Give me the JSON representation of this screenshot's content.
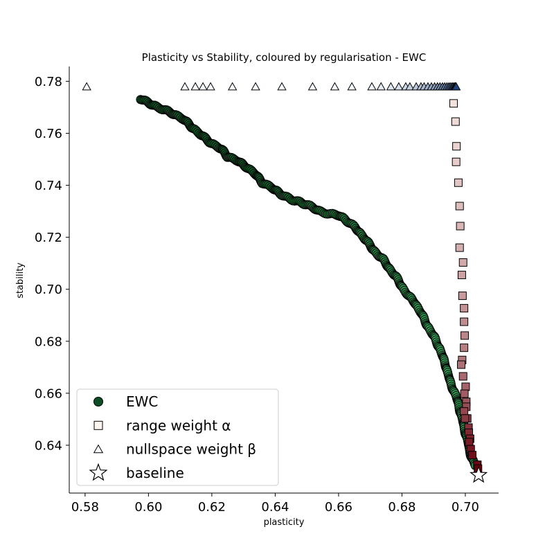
{
  "chart_data": {
    "type": "scatter",
    "title": "Plasticity vs Stability, coloured by regularisation - EWC",
    "xlabel": "plasticity",
    "ylabel": "stability",
    "xlim": [
      0.575,
      0.7105
    ],
    "ylim": [
      0.6216,
      0.7857
    ],
    "xticks": [
      0.58,
      0.6,
      0.62,
      0.64,
      0.66,
      0.68,
      0.7
    ],
    "xtick_labels": [
      "0.58",
      "0.60",
      "0.62",
      "0.64",
      "0.66",
      "0.68",
      "0.70"
    ],
    "yticks": [
      0.64,
      0.66,
      0.68,
      0.7,
      0.72,
      0.74,
      0.76,
      0.78
    ],
    "ytick_labels": [
      "0.64",
      "0.66",
      "0.68",
      "0.70",
      "0.72",
      "0.74",
      "0.76",
      "0.78"
    ],
    "legend_position": "lower-left",
    "legend": [
      {
        "label": "EWC",
        "marker": "circle"
      },
      {
        "label": "range weight α",
        "marker": "square"
      },
      {
        "label": "nullspace weight β",
        "marker": "triangle"
      },
      {
        "label": "baseline",
        "marker": "star"
      }
    ],
    "series": [
      {
        "name": "EWC",
        "marker": "circle",
        "colormap": "greens",
        "color_light": "#3aa85c",
        "color_dark": "#0b4d24",
        "trace": [
          [
            0.5975,
            0.7733
          ],
          [
            0.6,
            0.7717
          ],
          [
            0.603,
            0.77
          ],
          [
            0.607,
            0.768
          ],
          [
            0.611,
            0.7655
          ],
          [
            0.614,
            0.762
          ],
          [
            0.617,
            0.759
          ],
          [
            0.62,
            0.756
          ],
          [
            0.623,
            0.754
          ],
          [
            0.625,
            0.751
          ],
          [
            0.628,
            0.7495
          ],
          [
            0.631,
            0.747
          ],
          [
            0.634,
            0.744
          ],
          [
            0.636,
            0.741
          ],
          [
            0.639,
            0.739
          ],
          [
            0.642,
            0.7365
          ],
          [
            0.645,
            0.7345
          ],
          [
            0.648,
            0.7335
          ],
          [
            0.651,
            0.732
          ],
          [
            0.654,
            0.73
          ],
          [
            0.657,
            0.729
          ],
          [
            0.66,
            0.7285
          ],
          [
            0.662,
            0.727
          ],
          [
            0.665,
            0.724
          ],
          [
            0.668,
            0.72
          ],
          [
            0.671,
            0.715
          ],
          [
            0.674,
            0.7115
          ],
          [
            0.676,
            0.708
          ],
          [
            0.678,
            0.705
          ],
          [
            0.68,
            0.701
          ],
          [
            0.682,
            0.6975
          ],
          [
            0.684,
            0.695
          ],
          [
            0.686,
            0.691
          ],
          [
            0.688,
            0.686
          ],
          [
            0.69,
            0.682
          ],
          [
            0.692,
            0.677
          ],
          [
            0.694,
            0.67
          ],
          [
            0.695,
            0.665
          ],
          [
            0.697,
            0.659
          ],
          [
            0.698,
            0.655
          ],
          [
            0.699,
            0.65
          ],
          [
            0.7,
            0.645
          ],
          [
            0.701,
            0.64
          ],
          [
            0.702,
            0.635
          ],
          [
            0.703,
            0.6325
          ]
        ]
      },
      {
        "name": "range weight α",
        "marker": "square",
        "colormap": "reds",
        "color_light": "#fff5f0",
        "color_dark": "#67000d",
        "points": [
          [
            0.6963,
            0.7715
          ],
          [
            0.6969,
            0.7645
          ],
          [
            0.6972,
            0.755
          ],
          [
            0.6971,
            0.749
          ],
          [
            0.6978,
            0.741
          ],
          [
            0.6982,
            0.732
          ],
          [
            0.6984,
            0.7243
          ],
          [
            0.6982,
            0.716
          ],
          [
            0.6993,
            0.7103
          ],
          [
            0.6989,
            0.7055
          ],
          [
            0.6991,
            0.6975
          ],
          [
            0.6996,
            0.6927
          ],
          [
            0.6996,
            0.6875
          ],
          [
            0.6998,
            0.6822
          ],
          [
            0.6996,
            0.6775
          ],
          [
            0.699,
            0.6728
          ],
          [
            0.6987,
            0.671
          ],
          [
            0.6993,
            0.6665
          ],
          [
            0.7001,
            0.6625
          ],
          [
            0.6997,
            0.6598
          ],
          [
            0.7003,
            0.6567
          ],
          [
            0.7003,
            0.6548
          ],
          [
            0.6996,
            0.653
          ],
          [
            0.7006,
            0.6503
          ],
          [
            0.6999,
            0.6503
          ],
          [
            0.701,
            0.6468
          ],
          [
            0.7011,
            0.6448
          ],
          [
            0.7015,
            0.6425
          ],
          [
            0.7012,
            0.6412
          ],
          [
            0.7017,
            0.6385
          ],
          [
            0.7022,
            0.6362
          ],
          [
            0.7038,
            0.6325
          ],
          [
            0.704,
            0.631
          ]
        ]
      },
      {
        "name": "nullspace weight β",
        "marker": "triangle",
        "colormap": "blues",
        "color_light": "#f7fbff",
        "color_dark": "#08306b",
        "y": 0.7777,
        "x": [
          0.5805,
          0.6115,
          0.6148,
          0.6172,
          0.6196,
          0.6265,
          0.6338,
          0.6421,
          0.6518,
          0.6588,
          0.6642,
          0.6705,
          0.6734,
          0.6765,
          0.679,
          0.6812,
          0.6825,
          0.6845,
          0.686,
          0.687,
          0.6882,
          0.6893,
          0.6903,
          0.6912,
          0.692,
          0.6928,
          0.6935,
          0.6942,
          0.6948,
          0.6953,
          0.6958,
          0.6962,
          0.6966,
          0.6968,
          0.6971
        ]
      },
      {
        "name": "baseline",
        "marker": "star",
        "color": "#ffffff",
        "points": [
          [
            0.7042,
            0.6285
          ]
        ]
      }
    ]
  }
}
